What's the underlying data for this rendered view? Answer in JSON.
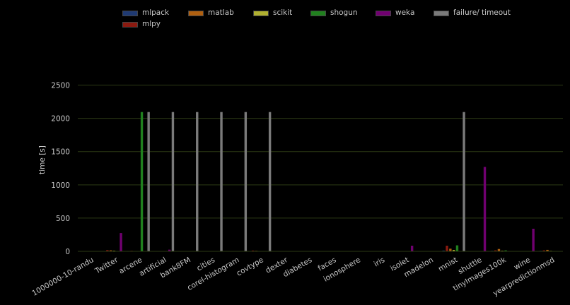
{
  "chart_data": {
    "type": "bar",
    "ylabel": "time [s]",
    "ylim": [
      0,
      2750
    ],
    "yticks": [
      0,
      500,
      1000,
      1500,
      2000,
      2500
    ],
    "grid": true,
    "legend_position": "top",
    "categories": [
      "1000000-10-randu",
      "Twitter",
      "arcene",
      "artificial",
      "bank8FM",
      "cities",
      "corel-histogram",
      "covtype",
      "dexter",
      "diabetes",
      "faces",
      "ionosphere",
      "iris",
      "isolet",
      "madelon",
      "mnist",
      "shuttle",
      "tinyImages100k",
      "wine",
      "yearpredictionmsd"
    ],
    "series": [
      {
        "name": "mlpack",
        "color": "#1f3a73",
        "values": [
          3,
          0,
          3,
          0,
          0,
          0,
          0,
          5,
          0,
          0,
          0,
          0,
          0,
          0,
          0,
          12,
          0,
          8,
          0,
          8
        ]
      },
      {
        "name": "mlpy",
        "color": "#8b1a10",
        "values": [
          0,
          18,
          8,
          0,
          0,
          0,
          0,
          12,
          0,
          0,
          0,
          0,
          0,
          0,
          0,
          85,
          0,
          15,
          0,
          15
        ]
      },
      {
        "name": "matlab",
        "color": "#b06010",
        "values": [
          0,
          15,
          0,
          0,
          0,
          0,
          0,
          8,
          0,
          0,
          0,
          0,
          0,
          0,
          0,
          40,
          0,
          35,
          0,
          22
        ]
      },
      {
        "name": "scikit",
        "color": "#b0b030",
        "values": [
          0,
          10,
          0,
          0,
          0,
          0,
          0,
          5,
          0,
          0,
          0,
          0,
          0,
          0,
          0,
          20,
          0,
          10,
          0,
          8
        ]
      },
      {
        "name": "shogun",
        "color": "#20801e",
        "values": [
          0,
          0,
          2095,
          0,
          0,
          0,
          0,
          0,
          0,
          0,
          0,
          0,
          0,
          0,
          0,
          90,
          0,
          15,
          0,
          0
        ]
      },
      {
        "name": "weka",
        "color": "#700070",
        "values": [
          0,
          275,
          0,
          25,
          0,
          0,
          0,
          0,
          0,
          0,
          0,
          0,
          0,
          85,
          0,
          0,
          1270,
          0,
          340,
          0
        ]
      },
      {
        "name": "failure/ timeout",
        "color": "#7a7a7a",
        "values": [
          0,
          0,
          2095,
          2095,
          2095,
          2095,
          2095,
          2095,
          0,
          0,
          0,
          0,
          0,
          0,
          0,
          2095,
          0,
          0,
          0,
          0
        ]
      }
    ]
  }
}
